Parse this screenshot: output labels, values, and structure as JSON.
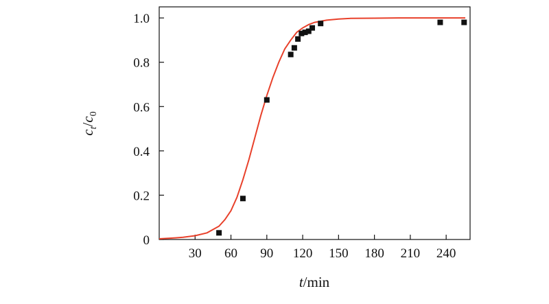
{
  "chart_data": {
    "type": "scatter",
    "xlabel": {
      "italic": "t",
      "rest": "/min"
    },
    "ylabel": {
      "c": "c",
      "sub_t": "t",
      "slash": "/",
      "c0": "c",
      "sub_0": "0"
    },
    "xlim": [
      0,
      260
    ],
    "ylim": [
      0,
      1.05
    ],
    "x_ticks": [
      30,
      60,
      90,
      120,
      150,
      180,
      210,
      240
    ],
    "x_tick_labels": [
      "30",
      "60",
      "90",
      "120",
      "150",
      "180",
      "210",
      "240"
    ],
    "y_ticks": [
      0,
      0.2,
      0.4,
      0.6,
      0.8,
      1.0
    ],
    "y_tick_labels": [
      "0",
      "0.2",
      "0.4",
      "0.6",
      "0.8",
      "1.0"
    ],
    "grid": false,
    "legend": "none",
    "series": [
      {
        "kind": "points",
        "marker": "square",
        "color": "#111111",
        "x": [
          50,
          70,
          90,
          110,
          113,
          116,
          119,
          122,
          125,
          128,
          135,
          235,
          255
        ],
        "y": [
          0.03,
          0.185,
          0.63,
          0.835,
          0.865,
          0.905,
          0.93,
          0.935,
          0.94,
          0.955,
          0.975,
          0.98,
          0.98
        ]
      },
      {
        "kind": "fitted-curve",
        "color": "#e8402a",
        "x": [
          0,
          10,
          20,
          30,
          40,
          50,
          55,
          60,
          65,
          70,
          75,
          80,
          85,
          90,
          95,
          100,
          105,
          110,
          115,
          120,
          125,
          130,
          140,
          150,
          160,
          180,
          200,
          220,
          240,
          256
        ],
        "y": [
          0.003,
          0.006,
          0.01,
          0.017,
          0.03,
          0.06,
          0.09,
          0.13,
          0.19,
          0.27,
          0.36,
          0.46,
          0.56,
          0.65,
          0.73,
          0.8,
          0.86,
          0.9,
          0.935,
          0.955,
          0.97,
          0.98,
          0.99,
          0.995,
          0.998,
          0.999,
          1.0,
          1.0,
          1.0,
          1.0
        ]
      }
    ]
  }
}
